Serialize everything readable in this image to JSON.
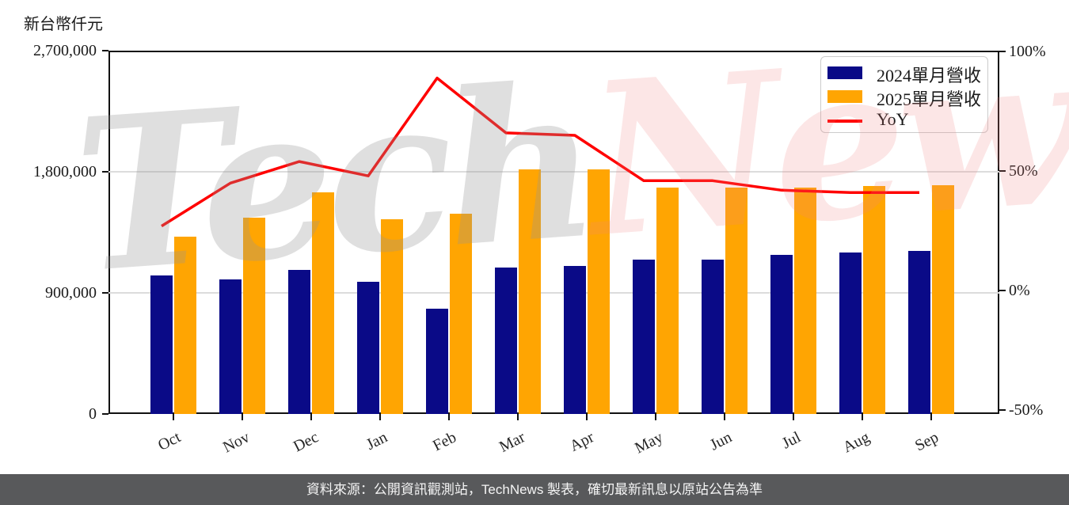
{
  "unit_label": "新台幣仟元",
  "watermark": {
    "part1": "Tech",
    "part2": "News"
  },
  "footer": {
    "text": "資料來源：公開資訊觀測站，TechNews 製表，確切最新訊息以原站公告為準"
  },
  "chart_data": {
    "type": "bar",
    "subtype": "grouped-bars-with-line-overlay",
    "categories": [
      "Oct",
      "Nov",
      "Dec",
      "Jan",
      "Feb",
      "Mar",
      "Apr",
      "May",
      "Jun",
      "Jul",
      "Aug",
      "Sep"
    ],
    "series": [
      {
        "name": "2024單月營收",
        "type": "bar",
        "axis": "left",
        "color": "#0a0a87",
        "values": [
          1030000,
          1000000,
          1070000,
          980000,
          780000,
          1090000,
          1100000,
          1150000,
          1145000,
          1180000,
          1200000,
          1210000
        ]
      },
      {
        "name": "2025單月營收",
        "type": "bar",
        "axis": "left",
        "color": "#ffa502",
        "values": [
          1320000,
          1460000,
          1650000,
          1450000,
          1490000,
          1820000,
          1820000,
          1680000,
          1680000,
          1685000,
          1695000,
          1700000
        ]
      },
      {
        "name": "YoY",
        "type": "line",
        "axis": "right",
        "color": "#ff0000",
        "unit": "%",
        "values": [
          27,
          45,
          54,
          48,
          89,
          66,
          65,
          46,
          46,
          42,
          41,
          41
        ]
      }
    ],
    "left_axis": {
      "title": "新台幣仟元",
      "min": 0,
      "max": 2700000,
      "tick_values": [
        0,
        900000,
        1800000,
        2700000
      ],
      "tick_labels": [
        "0",
        "900,000",
        "1,800,000",
        "2,700,000"
      ]
    },
    "right_axis": {
      "min": -50,
      "max": 100,
      "tick_values": [
        -50,
        0,
        50,
        100
      ],
      "tick_labels": [
        "-50%",
        "0%",
        "50%",
        "100%"
      ]
    },
    "grid": "horizontal",
    "legend_position": "top-right"
  }
}
